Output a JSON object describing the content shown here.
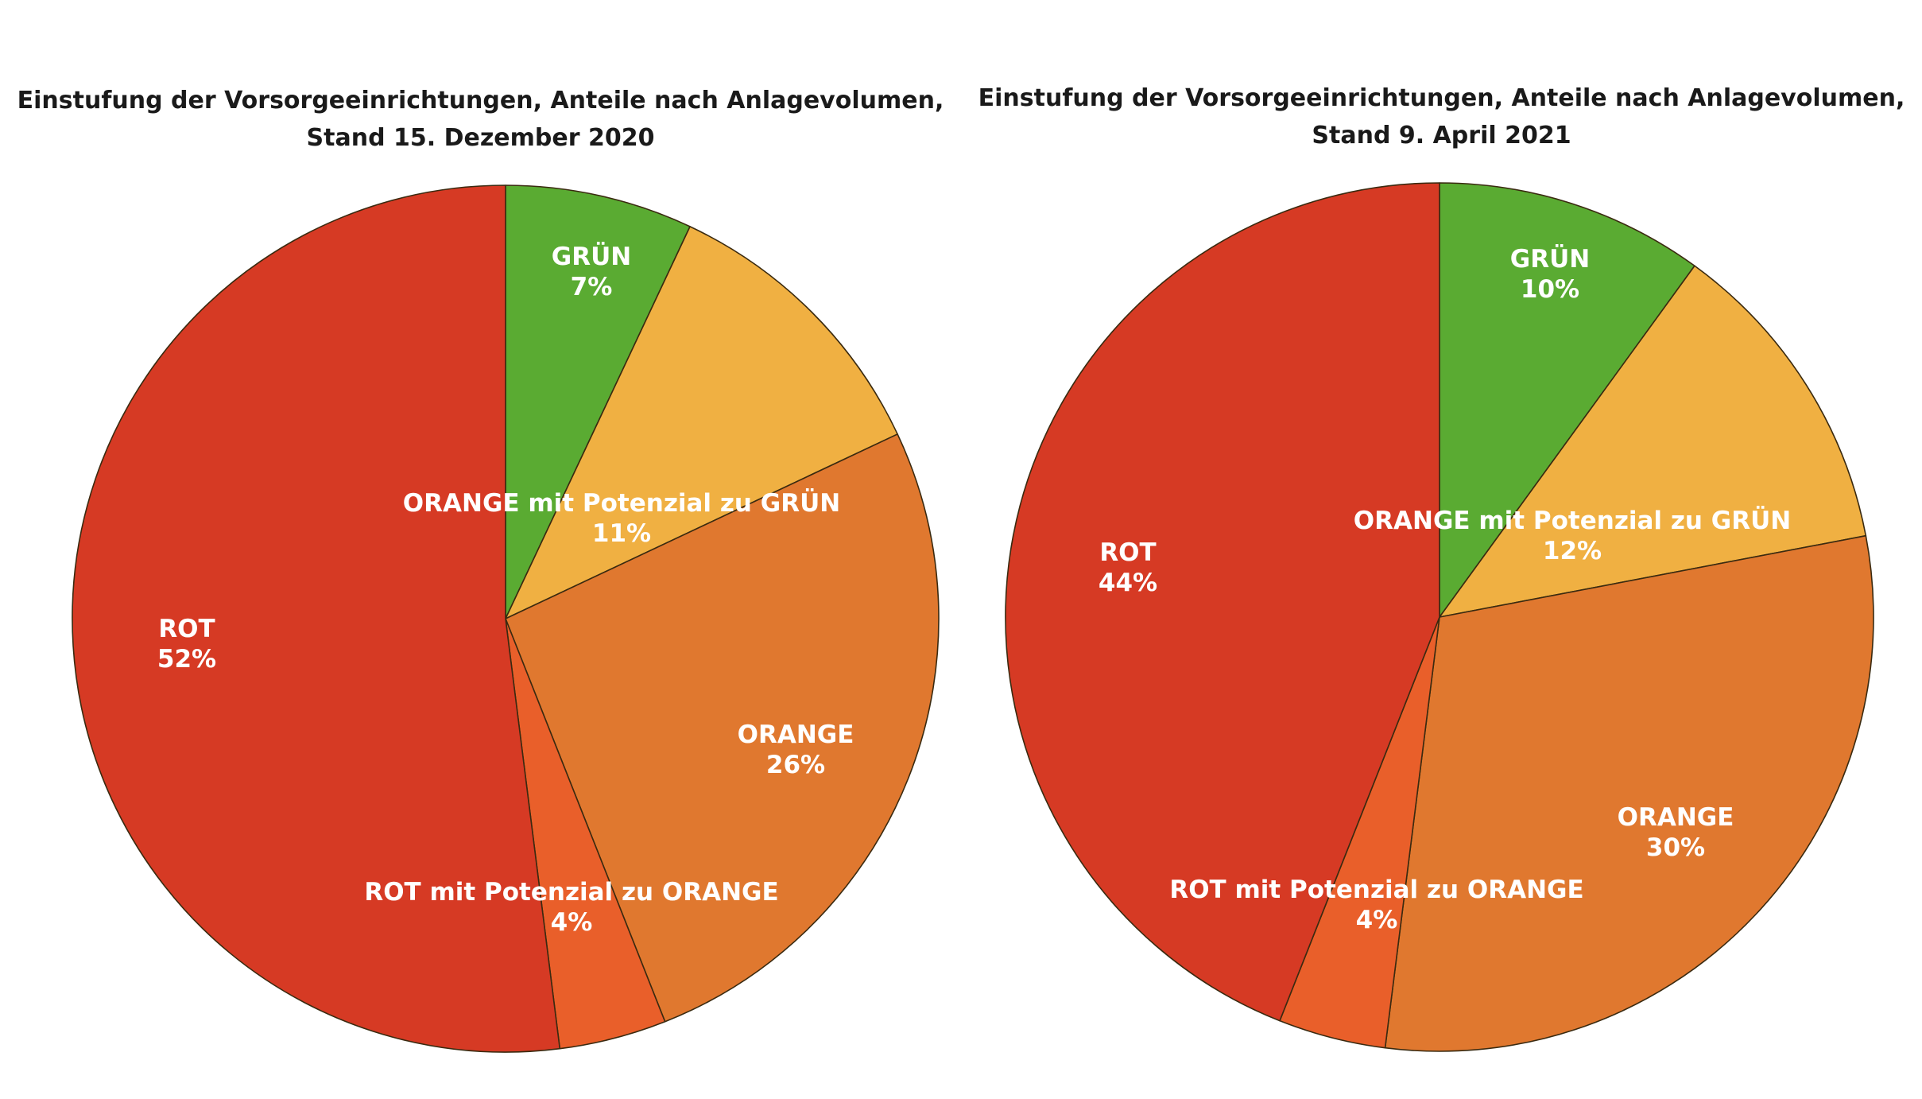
{
  "chart_data": [
    {
      "type": "pie",
      "title_line1": "Einstufung der Vorsorgeeinrichtungen, Anteile nach Anlagevolumen,",
      "title_line2": "Stand 15. Dezember 2020",
      "categories": [
        "GRÜN",
        "ORANGE mit Potenzial zu GRÜN",
        "ORANGE",
        "ROT mit Potenzial zu ORANGE",
        "ROT"
      ],
      "values": [
        7,
        11,
        26,
        4,
        52
      ],
      "value_labels": [
        "7%",
        "11%",
        "26%",
        "4%",
        "52%"
      ],
      "colors": [
        "#5aab32",
        "#f0b042",
        "#e0782f",
        "#e95f2a",
        "#d63a24"
      ],
      "start": "12 o'clock",
      "direction": "clockwise",
      "legend": "none"
    },
    {
      "type": "pie",
      "title_line1": "Einstufung der Vorsorgeeinrichtungen, Anteile nach Anlagevolumen,",
      "title_line2": "Stand 9. April 2021",
      "categories": [
        "GRÜN",
        "ORANGE mit Potenzial zu GRÜN",
        "ORANGE",
        "ROT mit Potenzial zu ORANGE",
        "ROT"
      ],
      "values": [
        10,
        12,
        30,
        4,
        44
      ],
      "value_labels": [
        "10%",
        "12%",
        "30%",
        "4%",
        "44%"
      ],
      "colors": [
        "#5aab32",
        "#f0b042",
        "#e0782f",
        "#e95f2a",
        "#d63a24"
      ],
      "start": "12 o'clock",
      "direction": "clockwise",
      "legend": "none"
    }
  ]
}
